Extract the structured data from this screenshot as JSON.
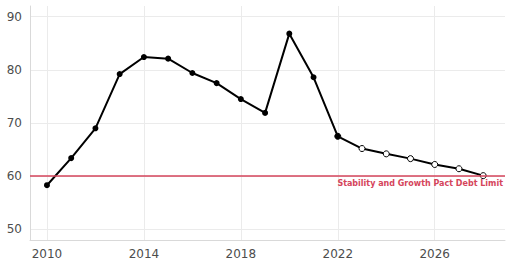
{
  "chart_data": {
    "type": "line",
    "x": [
      2010,
      2011,
      2012,
      2013,
      2014,
      2015,
      2016,
      2017,
      2018,
      2019,
      2020,
      2021,
      2022,
      2023,
      2024,
      2025,
      2026,
      2027,
      2028
    ],
    "series": [
      {
        "color": "#000000",
        "marker": "filled_circle",
        "values": [
          58.3,
          63.4,
          69.0,
          79.2,
          82.4,
          82.1,
          79.4,
          77.5,
          74.5,
          71.9,
          86.8,
          78.6,
          67.5,
          null,
          null,
          null,
          null,
          null,
          null
        ]
      },
      {
        "color": "#000000",
        "marker": "open_circle",
        "values": [
          null,
          null,
          null,
          null,
          null,
          null,
          null,
          null,
          null,
          null,
          null,
          null,
          67.5,
          65.2,
          64.2,
          63.3,
          62.2,
          61.4,
          60.1
        ]
      }
    ],
    "xlim": [
      2009.3,
      2028.9
    ],
    "xticks": [
      2010,
      2014,
      2018,
      2022,
      2026
    ],
    "ylim": [
      48,
      92
    ],
    "yticks": [
      50,
      60,
      70,
      80,
      90
    ],
    "grid": true,
    "annotations": [
      {
        "y": 60,
        "label": "Stability and Growth Pact Debt Limit",
        "color": "#d5455b"
      }
    ]
  }
}
